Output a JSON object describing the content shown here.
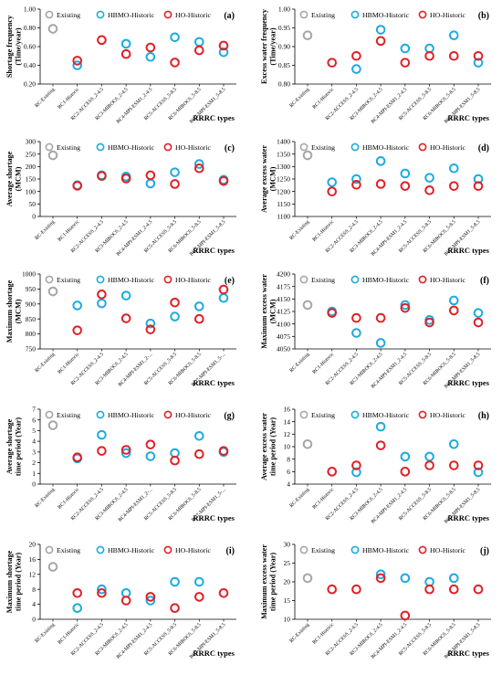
{
  "legend_entries": [
    "Existing",
    "HBMO-Historic",
    "HO-Historic"
  ],
  "colors": {
    "existing": "#a6a6a6",
    "hbmo": "#1aabe0",
    "ho": "#e21f26",
    "axis": "#000000"
  },
  "categories": [
    "RC-Existing",
    "RC1-Historic",
    "RC2-ACCESS_2-4.5",
    "RC3-MIROC6_2-4.5",
    "RC4-MPI-ESM1_2-4.5",
    "RC5-ACCESS_5-8.5",
    "RC6-MIROC6_5-8.5",
    "RC7-MPI-ESM1_5-8.5"
  ],
  "categories_trunc": [
    "RC-Existing",
    "RC1-Historic",
    "RC2-ACCESS_2-4.5",
    "RC3-MIROC6_2-4.5",
    "RC4-MPI-ESM1_2-...",
    "RC5-ACCESS_5-8.5",
    "RC6-MIROC6_5-8.5",
    "RC7-MPI-ESM1_5-..."
  ],
  "chart_data": [
    {
      "type": "scatter",
      "panel_label": "(a)",
      "ylabel": [
        "Shortage frequency",
        "(Time/year)"
      ],
      "xlabel": "RRRC types",
      "ylim": [
        0.2,
        1.0
      ],
      "yticks": [
        0.2,
        0.4,
        0.6,
        0.8,
        1.0
      ],
      "ytick_labels": [
        "0.20",
        "0.40",
        "0.60",
        "0.80",
        "1.00"
      ],
      "truncated_labels": false,
      "series": [
        {
          "name": "Existing",
          "values": [
            0.79,
            null,
            null,
            null,
            null,
            null,
            null,
            null
          ]
        },
        {
          "name": "HBMO-Historic",
          "values": [
            null,
            0.4,
            null,
            0.63,
            0.49,
            0.7,
            0.65,
            0.54
          ]
        },
        {
          "name": "HO-Historic",
          "values": [
            null,
            0.45,
            0.67,
            0.52,
            0.59,
            0.43,
            0.56,
            0.61
          ]
        }
      ]
    },
    {
      "type": "scatter",
      "panel_label": "(b)",
      "ylabel": [
        "Excess water frequency",
        "(Time/year)"
      ],
      "xlabel": "RRRC types",
      "ylim": [
        0.8,
        1.0
      ],
      "yticks": [
        0.8,
        0.85,
        0.9,
        0.95,
        1.0
      ],
      "ytick_labels": [
        "0.80",
        "0.85",
        "0.90",
        "0.95",
        "1.00"
      ],
      "truncated_labels": false,
      "series": [
        {
          "name": "Existing",
          "values": [
            0.93,
            null,
            null,
            null,
            null,
            null,
            null,
            null
          ]
        },
        {
          "name": "HBMO-Historic",
          "values": [
            null,
            null,
            0.84,
            0.945,
            0.895,
            0.895,
            0.93,
            0.857
          ]
        },
        {
          "name": "HO-Historic",
          "values": [
            null,
            0.857,
            0.875,
            0.915,
            0.857,
            0.875,
            0.875,
            0.875
          ]
        }
      ]
    },
    {
      "type": "scatter",
      "panel_label": "(c)",
      "ylabel": [
        "Average shortage",
        "(MCM)"
      ],
      "xlabel": "RRRC types",
      "ylim": [
        0,
        300
      ],
      "yticks": [
        0,
        50,
        100,
        150,
        200,
        250,
        300
      ],
      "ytick_labels": [
        "0",
        "50",
        "100",
        "150",
        "200",
        "250",
        "300"
      ],
      "truncated_labels": false,
      "series": [
        {
          "name": "Existing",
          "values": [
            245,
            null,
            null,
            null,
            null,
            null,
            null,
            null
          ]
        },
        {
          "name": "HBMO-Historic",
          "values": [
            null,
            125,
            165,
            160,
            132,
            177,
            210,
            147
          ]
        },
        {
          "name": "HO-Historic",
          "values": [
            null,
            123,
            162,
            152,
            165,
            130,
            193,
            142
          ]
        }
      ]
    },
    {
      "type": "scatter",
      "panel_label": "(d)",
      "ylabel": [
        "Average excess water",
        "(MCM)"
      ],
      "xlabel": "RRRC types",
      "ylim": [
        1100,
        1400
      ],
      "yticks": [
        1100,
        1150,
        1200,
        1250,
        1300,
        1350,
        1400
      ],
      "ytick_labels": [
        "1100",
        "1150",
        "1200",
        "1250",
        "1300",
        "1350",
        "1400"
      ],
      "truncated_labels": false,
      "series": [
        {
          "name": "Existing",
          "values": [
            1345,
            null,
            null,
            null,
            null,
            null,
            null,
            null
          ]
        },
        {
          "name": "HBMO-Historic",
          "values": [
            null,
            1237,
            1250,
            1322,
            1272,
            1255,
            1293,
            1250
          ]
        },
        {
          "name": "HO-Historic",
          "values": [
            null,
            1200,
            1227,
            1230,
            1222,
            1205,
            1222,
            1222
          ]
        }
      ]
    },
    {
      "type": "scatter",
      "panel_label": "(e)",
      "ylabel": [
        "Maximum shortage",
        "(MCM)"
      ],
      "xlabel": "RRRC types",
      "ylim": [
        750,
        1000
      ],
      "yticks": [
        750,
        800,
        850,
        900,
        950,
        1000
      ],
      "ytick_labels": [
        "750",
        "800",
        "850",
        "900",
        "950",
        "1000"
      ],
      "truncated_labels": true,
      "series": [
        {
          "name": "Existing",
          "values": [
            942,
            null,
            null,
            null,
            null,
            null,
            null,
            null
          ]
        },
        {
          "name": "HBMO-Historic",
          "values": [
            null,
            895,
            902,
            928,
            835,
            858,
            892,
            920
          ]
        },
        {
          "name": "HO-Historic",
          "values": [
            null,
            812,
            932,
            852,
            815,
            905,
            850,
            948
          ]
        }
      ]
    },
    {
      "type": "scatter",
      "panel_label": "(f)",
      "ylabel": [
        "Maximum excess water",
        "(MCM)"
      ],
      "xlabel": "RRRC types",
      "ylim": [
        4050,
        4200
      ],
      "yticks": [
        4050,
        4075,
        4100,
        4125,
        4150,
        4175,
        4200
      ],
      "ytick_labels": [
        "4050",
        "4075",
        "4100",
        "4125",
        "4150",
        "4175",
        "4200"
      ],
      "truncated_labels": false,
      "series": [
        {
          "name": "Existing",
          "values": [
            4138,
            null,
            null,
            null,
            null,
            null,
            null,
            null
          ]
        },
        {
          "name": "HBMO-Historic",
          "values": [
            null,
            4125,
            4082,
            4062,
            4138,
            4108,
            4147,
            4122
          ]
        },
        {
          "name": "HO-Historic",
          "values": [
            null,
            4122,
            4112,
            4112,
            4132,
            4103,
            4127,
            4103
          ]
        }
      ]
    },
    {
      "type": "scatter",
      "panel_label": "(g)",
      "ylabel": [
        "Average shortage",
        "time period (Year)"
      ],
      "xlabel": "RRRC types",
      "ylim": [
        0,
        7
      ],
      "yticks": [
        0,
        1,
        2,
        3,
        4,
        5,
        6,
        7
      ],
      "ytick_labels": [
        "0",
        "1",
        "2",
        "3",
        "4",
        "5",
        "6",
        "7"
      ],
      "truncated_labels": true,
      "series": [
        {
          "name": "Existing",
          "values": [
            5.5,
            null,
            null,
            null,
            null,
            null,
            null,
            null
          ]
        },
        {
          "name": "HBMO-Historic",
          "values": [
            null,
            2.4,
            4.6,
            2.9,
            2.6,
            2.9,
            4.5,
            3.0
          ]
        },
        {
          "name": "HO-Historic",
          "values": [
            null,
            2.5,
            3.1,
            3.2,
            3.7,
            2.2,
            2.8,
            3.1
          ]
        }
      ]
    },
    {
      "type": "scatter",
      "panel_label": "(h)",
      "ylabel": [
        "Average excess water",
        "time period (Year)"
      ],
      "xlabel": "RRRC types",
      "ylim": [
        4,
        16
      ],
      "yticks": [
        4,
        6,
        8,
        10,
        12,
        14,
        16
      ],
      "ytick_labels": [
        "4",
        "6",
        "8",
        "10",
        "12",
        "14",
        "16"
      ],
      "truncated_labels": false,
      "series": [
        {
          "name": "Existing",
          "values": [
            10.4,
            null,
            null,
            null,
            null,
            null,
            null,
            null
          ]
        },
        {
          "name": "HBMO-Historic",
          "values": [
            null,
            null,
            5.9,
            13.2,
            8.4,
            8.4,
            10.4,
            5.9
          ]
        },
        {
          "name": "HO-Historic",
          "values": [
            null,
            6.0,
            7.0,
            10.2,
            6.0,
            7.0,
            7.0,
            7.0
          ]
        }
      ]
    },
    {
      "type": "scatter",
      "panel_label": "(i)",
      "ylabel": [
        "Maximum shortage",
        "time period (Year)"
      ],
      "xlabel": "RRRC types",
      "ylim": [
        0,
        20
      ],
      "yticks": [
        0,
        4,
        8,
        12,
        16,
        20
      ],
      "ytick_labels": [
        "0",
        "4",
        "8",
        "12",
        "16",
        "20"
      ],
      "truncated_labels": false,
      "series": [
        {
          "name": "Existing",
          "values": [
            14,
            null,
            null,
            null,
            null,
            null,
            null,
            null
          ]
        },
        {
          "name": "HBMO-Historic",
          "values": [
            null,
            3,
            8,
            7,
            5,
            10,
            10,
            null
          ]
        },
        {
          "name": "HO-Historic",
          "values": [
            null,
            7,
            7,
            5,
            6,
            3,
            6,
            7
          ]
        }
      ]
    },
    {
      "type": "scatter",
      "panel_label": "(j)",
      "ylabel": [
        "Maximum excess water",
        "time period (Year)"
      ],
      "xlabel": "RRRC types",
      "ylim": [
        10,
        30
      ],
      "yticks": [
        10,
        15,
        20,
        25,
        30
      ],
      "ytick_labels": [
        "10",
        "15",
        "20",
        "25",
        "30"
      ],
      "truncated_labels": false,
      "series": [
        {
          "name": "Existing",
          "values": [
            21,
            null,
            null,
            null,
            null,
            null,
            null,
            null
          ]
        },
        {
          "name": "HBMO-Historic",
          "values": [
            null,
            null,
            null,
            22,
            21,
            20,
            21,
            null
          ]
        },
        {
          "name": "HO-Historic",
          "values": [
            null,
            18,
            18,
            21,
            11,
            18,
            18,
            18
          ]
        }
      ]
    }
  ]
}
